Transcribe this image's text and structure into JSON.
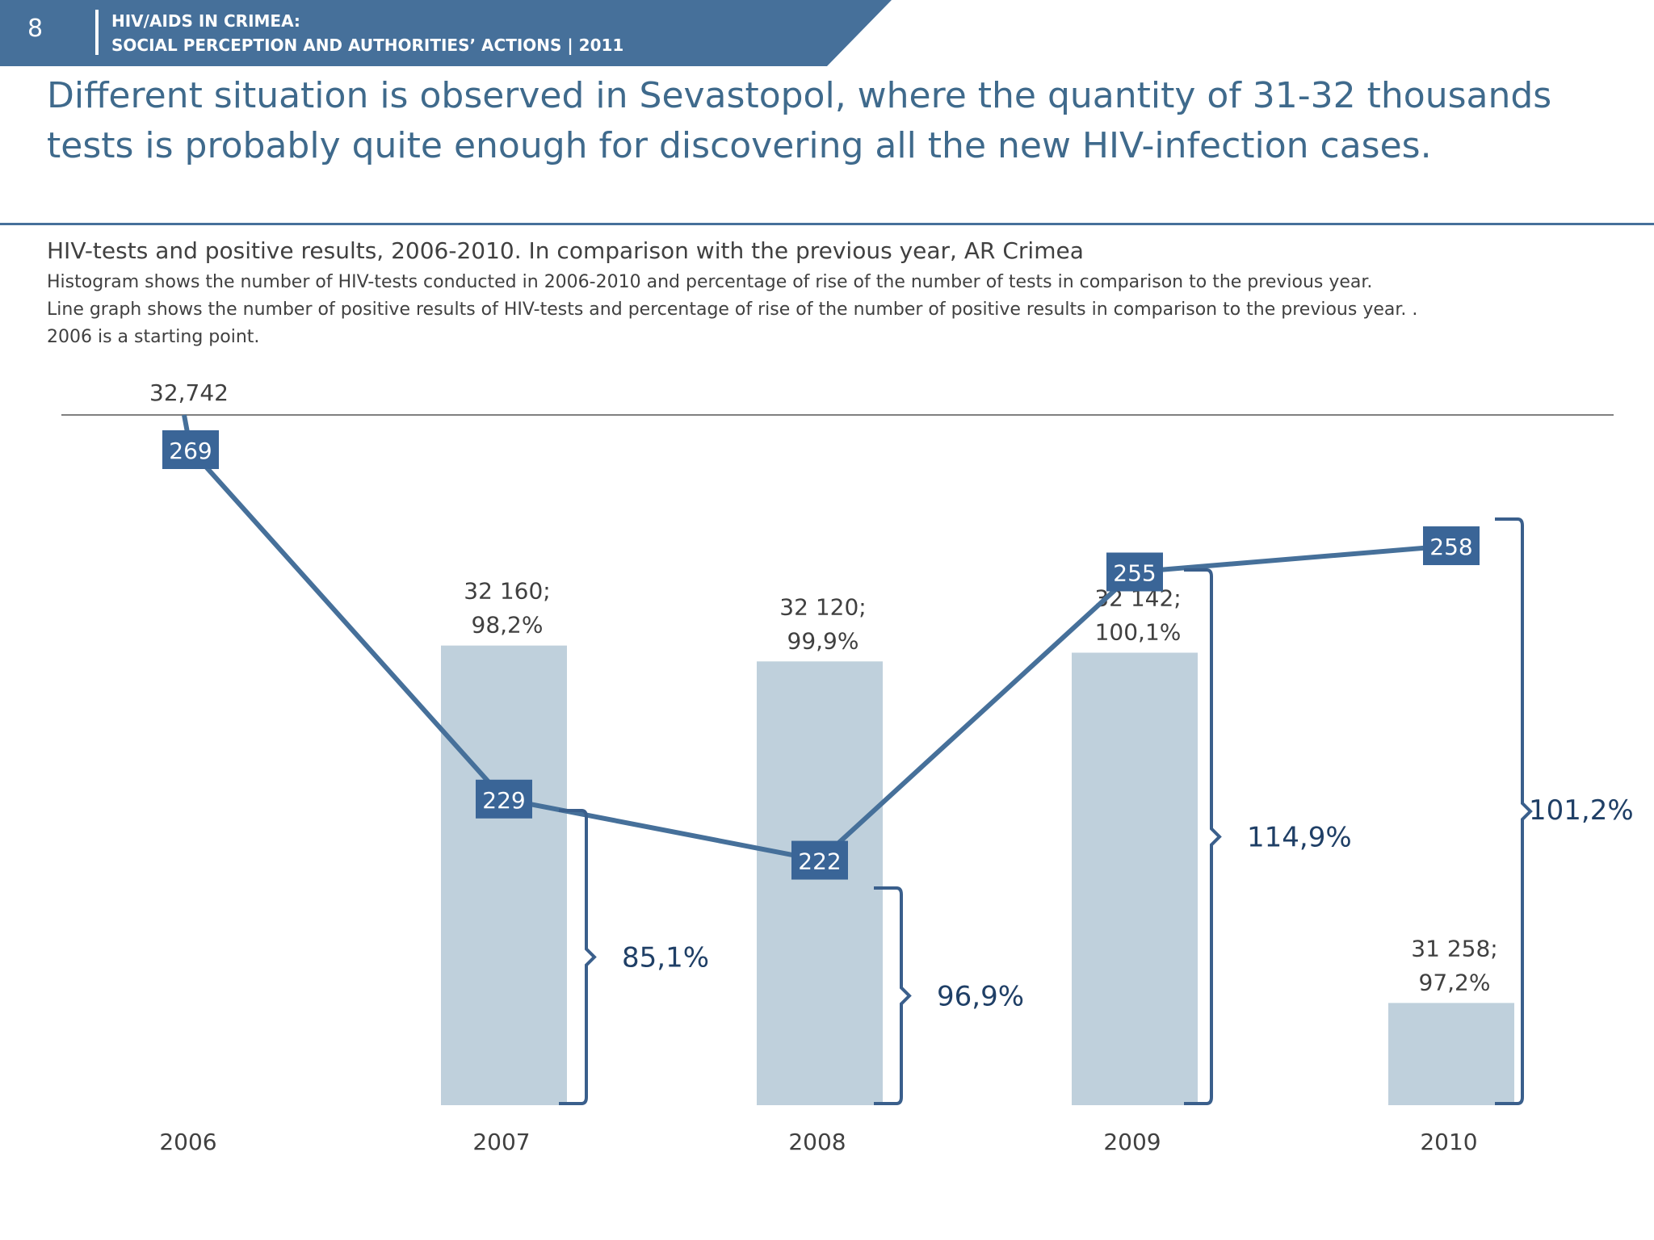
{
  "header": {
    "page_number": "8",
    "line1": "HIV/AIDS IN CRIMEA:",
    "line2": "SOCIAL PERCEPTION AND AUTHORITIES’ ACTIONS  |  2011"
  },
  "headline": "Different situation is observed in Sevastopol, where the quantity of 31-32 thousands tests is probably quite enough for discovering all the new HIV-infection cases.",
  "chart_title": "HIV-tests and positive results, 2006-2010. In comparison with the previous year, AR Crimea",
  "notes": [
    "Histogram shows the number of HIV-tests conducted in 2006-2010 and percentage of rise of the number of tests in comparison to the previous year.",
    "Line graph shows the number of positive results of HIV-tests  and percentage of rise of the number of  positive results in comparison to the previous year. .",
    "2006 is a starting point."
  ],
  "colors": {
    "header": "#46709a",
    "bar": "#bfd0dc",
    "line": "#46709a",
    "marker": "#3a6597",
    "bracket": "#3a5f8c",
    "pct_text": "#1f3f66"
  },
  "chart_data": {
    "type": "bar",
    "categories": [
      "2006",
      "2007",
      "2008",
      "2009",
      "2010"
    ],
    "series": [
      {
        "name": "HIV-tests",
        "type": "bar",
        "values": [
          32742,
          32160,
          32120,
          32142,
          31258
        ],
        "labels": [
          [
            "32,742"
          ],
          [
            "32 160;",
            "98,2%"
          ],
          [
            "32 120;",
            "99,9%"
          ],
          [
            "32 142;",
            "100,1%"
          ],
          [
            "31 258;",
            "97,2%"
          ]
        ]
      },
      {
        "name": "Positive results",
        "type": "line",
        "values": [
          269,
          229,
          222,
          255,
          258
        ],
        "labels": [
          "269",
          "229",
          "222",
          "255",
          "258"
        ]
      }
    ],
    "positive_change_pct": [
      "",
      "85,1%",
      "96,9%",
      "114,9%",
      "101,2%"
    ],
    "bar_axis_min": 31000,
    "grid": false,
    "legend": "none"
  }
}
